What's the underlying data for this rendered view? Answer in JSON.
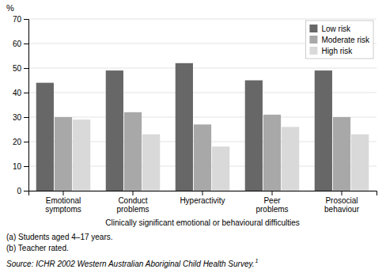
{
  "chart_data": {
    "type": "bar",
    "categories": [
      "Emotional\nsymptoms",
      "Conduct\nproblems",
      "Hyperactivity",
      "Peer\nproblems",
      "Prosocial\nbehaviour"
    ],
    "series": [
      {
        "name": "Low risk",
        "color": "#676767",
        "values": [
          44,
          49,
          52,
          45,
          49
        ]
      },
      {
        "name": "Moderate risk",
        "color": "#a8a8a8",
        "values": [
          30,
          32,
          27,
          31,
          30
        ]
      },
      {
        "name": "High risk",
        "color": "#d9d9d9",
        "values": [
          29,
          23,
          18,
          26,
          23
        ]
      }
    ],
    "xlabel": "Clinically significant emotional or behavioural difficulties",
    "ylabel": "%",
    "ylim": [
      0,
      70
    ],
    "yticks": [
      0,
      10,
      20,
      30,
      40,
      50,
      60,
      70
    ],
    "grid": true,
    "legend": "upper right",
    "annotations": [
      "(a) Students aged 4–17 years.",
      "(b) Teacher rated.",
      "Source: ICHR 2002 Western Australian Aboriginal Child Health Survey.",
      "1"
    ]
  }
}
